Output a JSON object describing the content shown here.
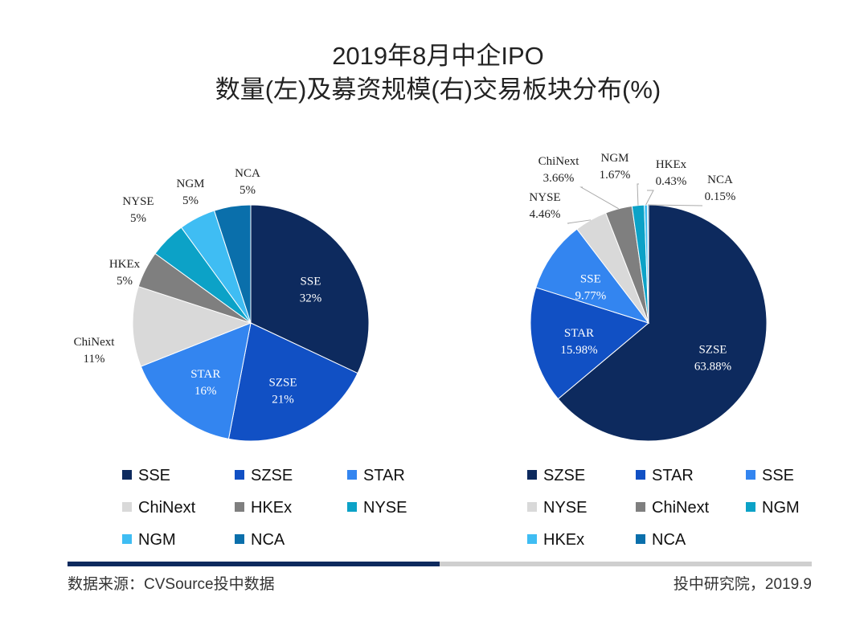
{
  "title": [
    "2019年8月中企IPO",
    "数量(左)及募资规模(右)交易板块分布(%)"
  ],
  "chart_data": [
    {
      "type": "pie",
      "categories": [
        "SSE",
        "SZSE",
        "STAR",
        "ChiNext",
        "HKEx",
        "NYSE",
        "NGM",
        "NCA"
      ],
      "values": [
        32,
        21,
        16,
        11,
        5,
        5,
        5,
        5
      ],
      "value_labels": [
        "32%",
        "21%",
        "16%",
        "11%",
        "5%",
        "5%",
        "5%",
        "5%"
      ],
      "colors": [
        "#0d2a5e",
        "#1150c4",
        "#3385f0",
        "#d9d9d9",
        "#7f7f7f",
        "#0ca2c7",
        "#3fbdf3",
        "#0a6fab"
      ]
    },
    {
      "type": "pie",
      "categories": [
        "SZSE",
        "STAR",
        "SSE",
        "NYSE",
        "ChiNext",
        "NGM",
        "HKEx",
        "NCA"
      ],
      "values": [
        63.88,
        15.98,
        9.77,
        4.46,
        3.66,
        1.67,
        0.43,
        0.15
      ],
      "value_labels": [
        "63.88%",
        "15.98%",
        "9.77%",
        "4.46%",
        "3.66%",
        "1.67%",
        "0.43%",
        "0.15%"
      ],
      "colors": [
        "#0d2a5e",
        "#1150c4",
        "#3385f0",
        "#d9d9d9",
        "#7f7f7f",
        "#0ca2c7",
        "#3fbdf3",
        "#0a6fab"
      ]
    }
  ],
  "footer": {
    "source": "数据来源：CVSource投中数据",
    "credit": "投中研究院，2019.9"
  }
}
